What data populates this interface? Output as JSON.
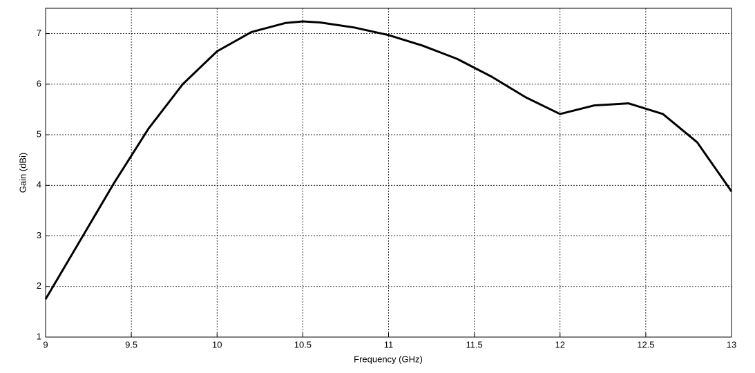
{
  "chart_data": {
    "type": "line",
    "xlabel": "Frequency (GHz)",
    "ylabel": "Gain (dBi)",
    "x": [
      9,
      9.2,
      9.4,
      9.6,
      9.8,
      10,
      10.2,
      10.4,
      10.5,
      10.6,
      10.8,
      11,
      11.2,
      11.4,
      11.6,
      11.8,
      12,
      12.2,
      12.4,
      12.6,
      12.8,
      13
    ],
    "series": [
      {
        "color": "#000000",
        "values": [
          1.75,
          2.9,
          4.05,
          5.12,
          6.0,
          6.65,
          7.03,
          7.21,
          7.24,
          7.22,
          7.12,
          6.97,
          6.76,
          6.5,
          6.15,
          5.74,
          5.41,
          5.58,
          5.62,
          5.41,
          4.85,
          3.88
        ]
      }
    ],
    "xlim": [
      9,
      13
    ],
    "xticks": [
      9,
      9.5,
      10,
      10.5,
      11,
      11.5,
      12,
      12.5,
      13
    ],
    "ylim": [
      1,
      7.5
    ],
    "yticks": [
      1,
      2,
      3,
      4,
      5,
      6,
      7
    ],
    "grid": true
  }
}
